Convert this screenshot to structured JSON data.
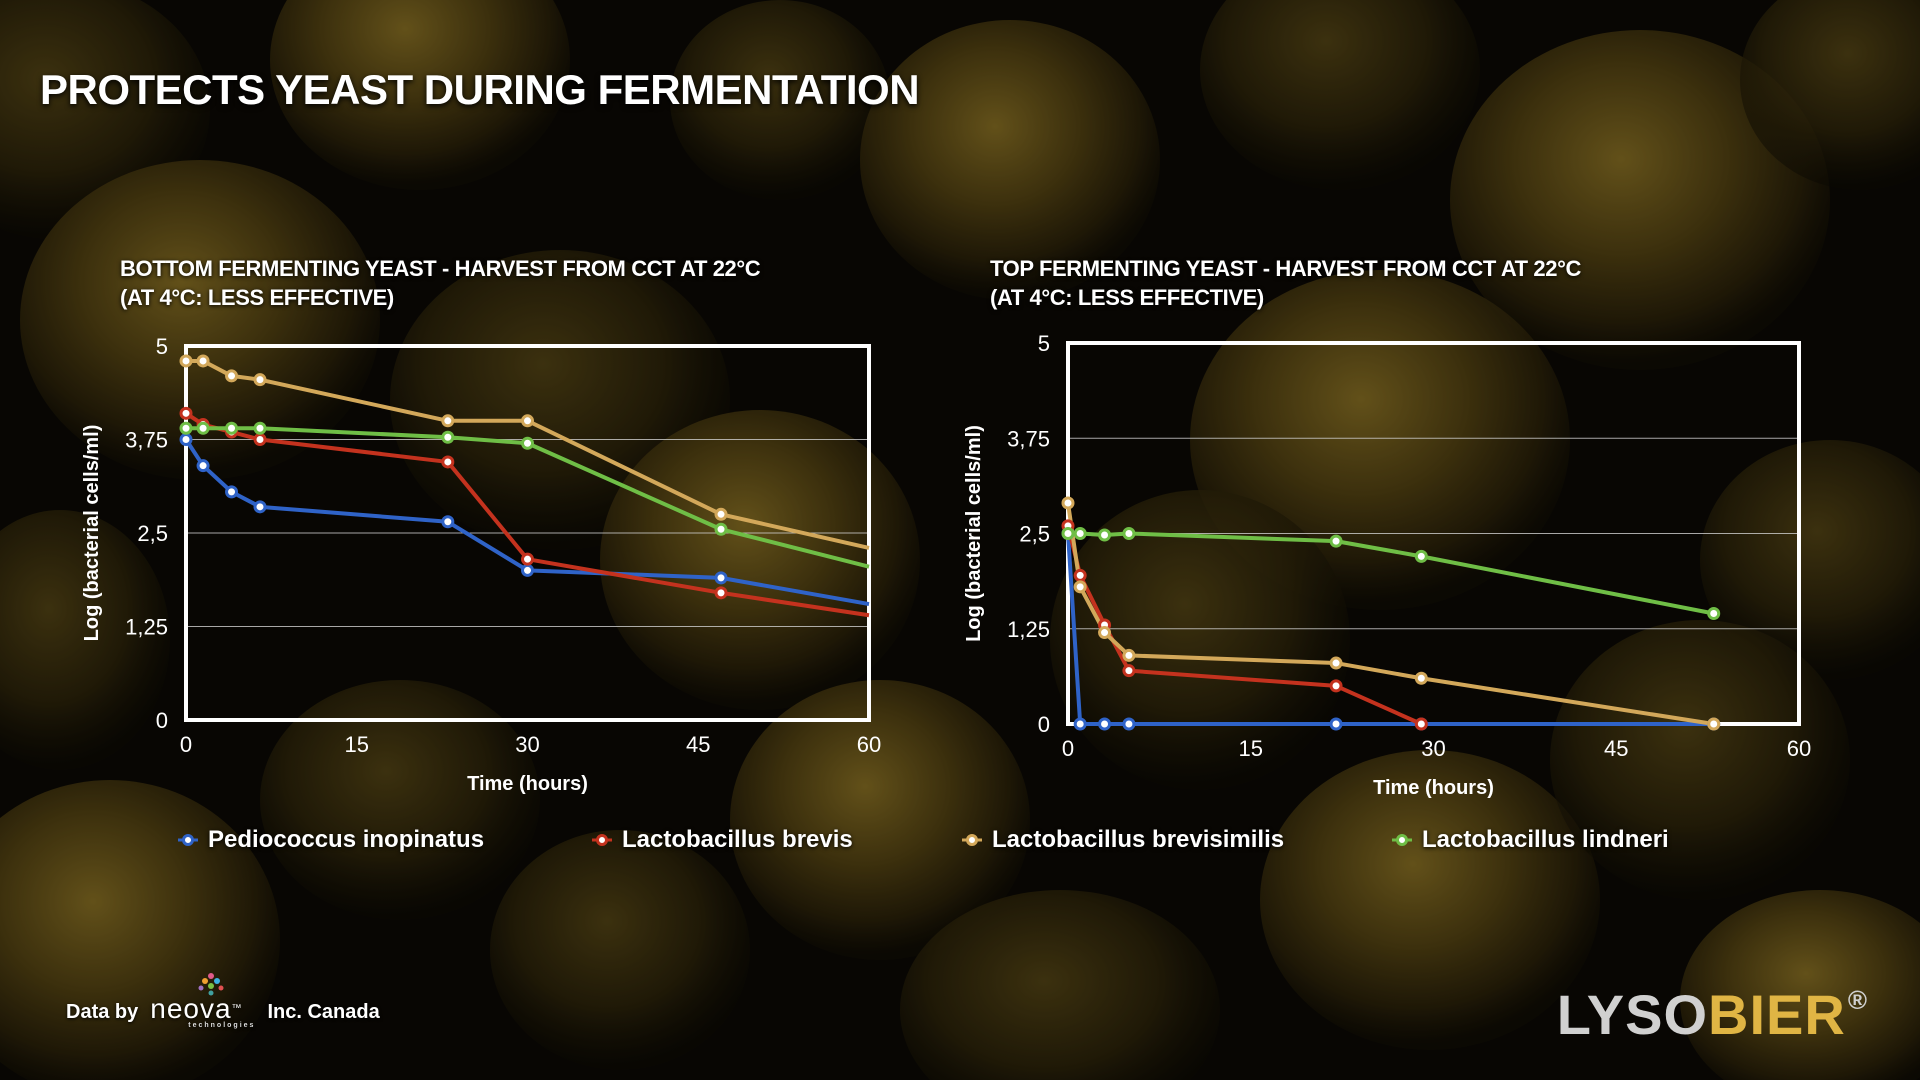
{
  "slide": {
    "title": "PROTECTS YEAST DURING FERMENTATION"
  },
  "colors": {
    "pediococcus": "#2f63c8",
    "brevis": "#c4321e",
    "brevisimilis": "#d3a85a",
    "lindneri": "#6fbe46",
    "frame": "#ffffff",
    "grid": "#cccccc",
    "brand_grey": "#d0d0d0",
    "brand_gold": "#e0b544"
  },
  "legend": [
    {
      "label": "Pediococcus inopinatus",
      "color": "#2f63c8"
    },
    {
      "label": "Lactobacillus brevis",
      "color": "#c4321e"
    },
    {
      "label": "Lactobacillus brevisimilis",
      "color": "#d3a85a"
    },
    {
      "label": "Lactobacillus lindneri",
      "color": "#6fbe46"
    }
  ],
  "chart_data": [
    {
      "type": "line",
      "title_lines": [
        "BOTTOM FERMENTING YEAST - HARVEST FROM CCT AT 22°C",
        "(AT 4°C: LESS EFFECTIVE)"
      ],
      "xlabel": "Time (hours)",
      "ylabel": "Log (bacterial cells/ml)",
      "xlim": [
        0,
        60
      ],
      "ylim": [
        0,
        5
      ],
      "xticks": [
        0,
        15,
        30,
        45,
        60
      ],
      "xtick_labels": [
        "0",
        "15",
        "30",
        "45",
        "60"
      ],
      "yticks": [
        0,
        1.25,
        2.5,
        3.75,
        5
      ],
      "ytick_labels": [
        "0",
        "1,25",
        "2,5",
        "3,75",
        "5"
      ],
      "grid": "horizontal",
      "series": [
        {
          "name": "Pediococcus inopinatus",
          "color": "#2f63c8",
          "points": [
            [
              0,
              3.75
            ],
            [
              1.5,
              3.4
            ],
            [
              4,
              3.05
            ],
            [
              6.5,
              2.85
            ],
            [
              23,
              2.65
            ],
            [
              30,
              2.0
            ],
            [
              47,
              1.9
            ],
            [
              60,
              1.55
            ]
          ],
          "markers_to": 47
        },
        {
          "name": "Lactobacillus brevis",
          "color": "#c4321e",
          "points": [
            [
              0,
              4.1
            ],
            [
              1.5,
              3.95
            ],
            [
              4,
              3.85
            ],
            [
              6.5,
              3.75
            ],
            [
              23,
              3.45
            ],
            [
              30,
              2.15
            ],
            [
              47,
              1.7
            ],
            [
              60,
              1.4
            ]
          ],
          "markers_to": 47
        },
        {
          "name": "Lactobacillus brevisimilis",
          "color": "#d3a85a",
          "points": [
            [
              0,
              4.8
            ],
            [
              1.5,
              4.8
            ],
            [
              4,
              4.6
            ],
            [
              6.5,
              4.55
            ],
            [
              23,
              4.0
            ],
            [
              30,
              4.0
            ],
            [
              47,
              2.75
            ],
            [
              60,
              2.3
            ]
          ],
          "markers_to": 47
        },
        {
          "name": "Lactobacillus lindneri",
          "color": "#6fbe46",
          "points": [
            [
              0,
              3.9
            ],
            [
              1.5,
              3.9
            ],
            [
              4,
              3.9
            ],
            [
              6.5,
              3.9
            ],
            [
              23,
              3.78
            ],
            [
              30,
              3.7
            ],
            [
              47,
              2.55
            ],
            [
              60,
              2.05
            ]
          ],
          "markers_to": 47
        }
      ]
    },
    {
      "type": "line",
      "title_lines": [
        "TOP FERMENTING YEAST - HARVEST FROM CCT AT 22°C",
        "(AT 4°C: LESS EFFECTIVE)"
      ],
      "xlabel": "Time (hours)",
      "ylabel": "Log (bacterial cells/ml)",
      "xlim": [
        0,
        60
      ],
      "ylim": [
        0,
        5
      ],
      "xticks": [
        0,
        15,
        30,
        45,
        60
      ],
      "xtick_labels": [
        "0",
        "15",
        "30",
        "45",
        "60"
      ],
      "yticks": [
        0,
        1.25,
        2.5,
        3.75,
        5
      ],
      "ytick_labels": [
        "0",
        "1,25",
        "2,5",
        "3,75",
        "5"
      ],
      "grid": "horizontal",
      "series": [
        {
          "name": "Pediococcus inopinatus",
          "color": "#2f63c8",
          "points": [
            [
              0,
              2.5
            ],
            [
              1,
              0
            ],
            [
              3,
              0
            ],
            [
              5,
              0
            ],
            [
              22,
              0
            ],
            [
              29,
              0
            ],
            [
              53,
              0
            ]
          ],
          "markers_to": 53
        },
        {
          "name": "Lactobacillus brevis",
          "color": "#c4321e",
          "points": [
            [
              0,
              2.6
            ],
            [
              1,
              1.95
            ],
            [
              3,
              1.3
            ],
            [
              5,
              0.7
            ],
            [
              22,
              0.5
            ],
            [
              29,
              0
            ]
          ],
          "markers_to": 53
        },
        {
          "name": "Lactobacillus brevisimilis",
          "color": "#d3a85a",
          "points": [
            [
              0,
              2.9
            ],
            [
              1,
              1.8
            ],
            [
              3,
              1.2
            ],
            [
              5,
              0.9
            ],
            [
              22,
              0.8
            ],
            [
              29,
              0.6
            ],
            [
              53,
              0
            ]
          ],
          "markers_to": 53
        },
        {
          "name": "Lactobacillus lindneri",
          "color": "#6fbe46",
          "points": [
            [
              0,
              2.5
            ],
            [
              1,
              2.5
            ],
            [
              3,
              2.48
            ],
            [
              5,
              2.5
            ],
            [
              22,
              2.4
            ],
            [
              29,
              2.2
            ],
            [
              53,
              1.45
            ]
          ],
          "markers_to": 53
        }
      ]
    }
  ],
  "footer": {
    "data_by": "Data by",
    "neova_word": "neova",
    "neova_tm": "™",
    "neova_sub": "technologies",
    "suffix": "Inc. Canada"
  },
  "brand": {
    "part1": "LYSO",
    "part2": "BIER",
    "reg": "®"
  }
}
